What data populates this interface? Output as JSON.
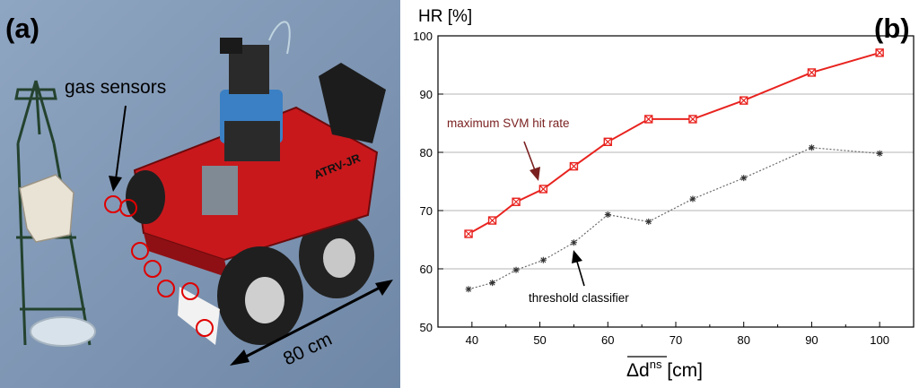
{
  "photo": {
    "panel_label": "(a)",
    "annotation_gas": "gas sensors",
    "annotation_distance": "80 cm",
    "robot_label": "ATRV-JR"
  },
  "chart": {
    "panel_label": "(b)"
  },
  "chart_data": {
    "type": "line",
    "ylabel": "HR [%]",
    "xlabel_main": "Δd",
    "xlabel_sup": "ns",
    "xlabel_unit": " [cm]",
    "xlim": [
      35,
      105
    ],
    "ylim": [
      50,
      100
    ],
    "xticks": [
      40,
      50,
      60,
      70,
      80,
      90,
      100
    ],
    "yticks": [
      50,
      60,
      70,
      80,
      90,
      100
    ],
    "grid": "horizontal",
    "series": [
      {
        "name": "maximum SVM hit rate",
        "color": "#e8231f",
        "label_color": "#7a1f1f",
        "style": "solid",
        "marker": "boxed-x",
        "x": [
          39.5,
          43,
          46.5,
          50.5,
          55,
          60,
          66,
          72.5,
          80,
          90,
          100
        ],
        "y": [
          66,
          68.3,
          71.5,
          73.7,
          77.6,
          81.8,
          85.7,
          85.7,
          88.9,
          93.7,
          97.1
        ]
      },
      {
        "name": "threshold classifier",
        "color": "#6a6a6a",
        "label_color": "#000000",
        "style": "dotted",
        "marker": "asterisk",
        "x": [
          39.5,
          43,
          46.5,
          50.5,
          55,
          60,
          66,
          72.5,
          80,
          90,
          100
        ],
        "y": [
          56.5,
          57.6,
          59.8,
          61.5,
          64.5,
          69.3,
          68.1,
          72,
          75.6,
          80.8,
          79.8
        ]
      }
    ]
  }
}
